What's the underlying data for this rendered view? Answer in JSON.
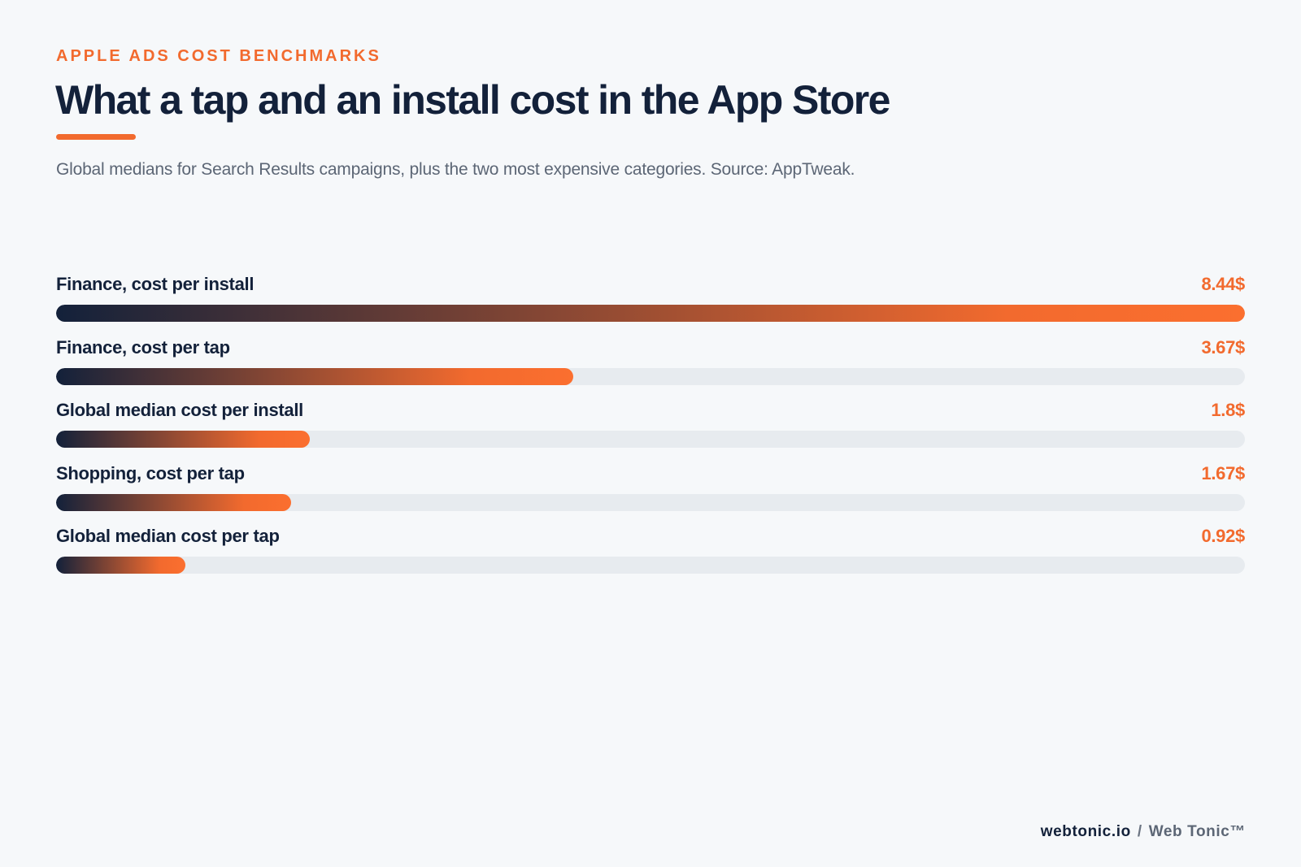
{
  "eyebrow": "APPLE ADS COST BENCHMARKS",
  "title": "What a tap and an install cost in the App Store",
  "subtitle": "Global medians for Search Results campaigns, plus the two most expensive categories. Source: AppTweak.",
  "colors": {
    "accent": "#f26a2e",
    "navy": "#13213a",
    "track": "#e7ebef",
    "background": "#f6f8fa"
  },
  "chart_data": {
    "type": "bar",
    "orientation": "horizontal",
    "categories": [
      "Finance, cost per install",
      "Finance, cost per tap",
      "Global median cost per install",
      "Shopping, cost per tap",
      "Global median cost per tap"
    ],
    "values": [
      8.44,
      3.67,
      1.8,
      1.67,
      0.92
    ],
    "value_labels": [
      "8.44$",
      "3.67$",
      "1.8$",
      "1.67$",
      "0.92$"
    ],
    "xlim": [
      0,
      8.44
    ],
    "grid": false
  },
  "footer": {
    "site": "webtonic.io",
    "separator": "/",
    "brand": "Web Tonic™"
  }
}
